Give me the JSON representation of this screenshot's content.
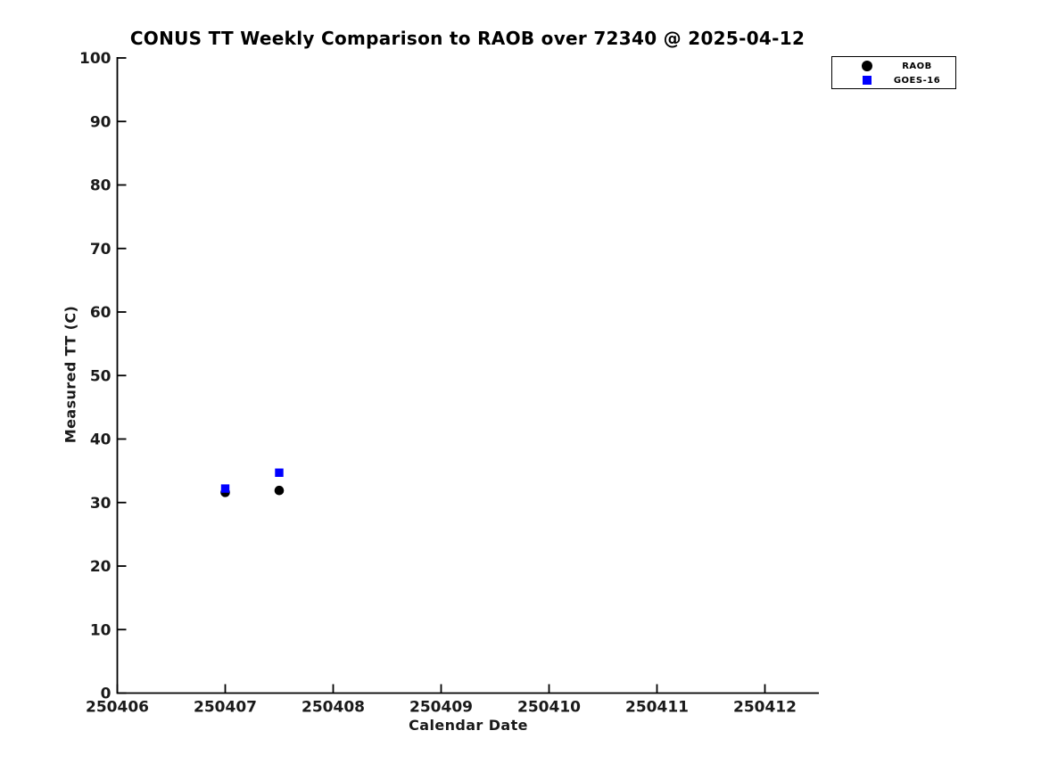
{
  "title": "CONUS TT Weekly Comparison to RAOB over 72340 @ 2025-04-12",
  "chart_data": {
    "type": "scatter",
    "title": "CONUS TT Weekly Comparison to RAOB over 72340 @ 2025-04-12",
    "xlabel": "Calendar Date",
    "ylabel": "Measured TT (C)",
    "xlim": [
      250406,
      250412.5
    ],
    "ylim": [
      0,
      100
    ],
    "x_ticks": [
      250406,
      250407,
      250408,
      250409,
      250410,
      250411,
      250412
    ],
    "y_ticks": [
      0,
      10,
      20,
      30,
      40,
      50,
      60,
      70,
      80,
      90,
      100
    ],
    "grid": false,
    "legend_position": "top-right-outside",
    "series": [
      {
        "name": "RAOB",
        "marker": "circle",
        "color": "#000000",
        "points": [
          [
            250407.0,
            31.6
          ],
          [
            250407.5,
            31.9
          ]
        ]
      },
      {
        "name": "GOES-16",
        "marker": "square",
        "color": "#0000ff",
        "points": [
          [
            250407.0,
            32.2
          ],
          [
            250407.5,
            34.7
          ]
        ]
      }
    ]
  },
  "colors": {
    "background": "#ffffff",
    "axis": "#000000",
    "text": "#1a1a1a",
    "raob_marker": "#000000",
    "goes16_marker": "#0000ff"
  }
}
